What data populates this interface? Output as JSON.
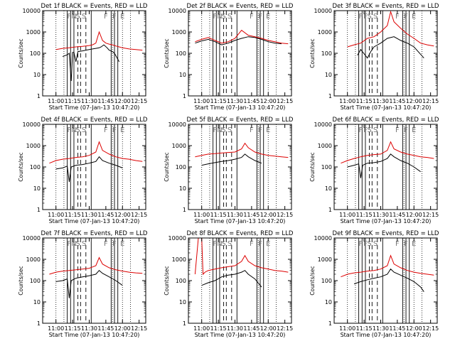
{
  "chart_data": [
    {
      "type": "line",
      "panel": 1,
      "title": "Det 1f BLACK = Events, RED = LLD",
      "xlabel": "Start Time (07-Jan-13 10:47:20)",
      "ylabel": "Counts/sec",
      "yscale": "log",
      "ylim": [
        1,
        10000
      ],
      "xlim_minutes": [
        10.8,
        12.35
      ],
      "xticks": [
        "11:00",
        "11:15",
        "11:30",
        "11:45",
        "12:00",
        "12:15"
      ],
      "yticks": [
        "1",
        "10",
        "100",
        "1000",
        "10000"
      ],
      "markers": [
        "F",
        "N",
        "S",
        "S",
        "F",
        "F",
        "E"
      ],
      "series": [
        {
          "color": "#000000",
          "x": [
            11.1,
            11.17,
            11.2,
            11.23,
            11.25,
            11.27,
            11.3,
            11.33,
            11.4,
            11.45,
            11.5,
            11.55,
            11.6,
            11.65,
            11.68,
            11.72,
            11.77,
            11.8,
            11.85,
            11.88,
            11.92,
            11.95
          ],
          "y": [
            70,
            85,
            100,
            5,
            110,
            110,
            40,
            120,
            130,
            140,
            150,
            160,
            170,
            180,
            200,
            250,
            180,
            140,
            120,
            100,
            60,
            40
          ]
        },
        {
          "color": "#dd0000",
          "x": [
            11.0,
            11.1,
            11.2,
            11.3,
            11.4,
            11.5,
            11.55,
            11.6,
            11.65,
            11.7,
            11.75,
            11.8,
            11.85,
            11.9,
            11.95,
            12.0,
            12.1,
            12.2,
            12.3
          ],
          "y": [
            150,
            170,
            180,
            200,
            210,
            230,
            250,
            300,
            1000,
            400,
            300,
            270,
            250,
            220,
            200,
            180,
            160,
            150,
            140
          ]
        }
      ]
    },
    {
      "type": "line",
      "panel": 2,
      "title": "Det 2f BLACK = Events, RED = LLD",
      "xlabel": "Start Time (07-Jan-13 10:47:20)",
      "ylabel": "Counts/sec",
      "yscale": "log",
      "ylim": [
        1,
        10000
      ],
      "xlim_minutes": [
        10.8,
        12.35
      ],
      "xticks": [
        "11:00",
        "11:15",
        "11:30",
        "11:45",
        "12:00",
        "12:15"
      ],
      "yticks": [
        "1",
        "10",
        "100",
        "1000",
        "10000"
      ],
      "markers": [
        "F",
        "N",
        "S",
        "S",
        "F",
        "F",
        "E"
      ],
      "series": [
        {
          "color": "#000000",
          "x": [
            10.9,
            11.0,
            11.1,
            11.2,
            11.3,
            11.4,
            11.5,
            11.6,
            11.7,
            11.8,
            11.9,
            12.0,
            12.1,
            12.2
          ],
          "y": [
            300,
            380,
            450,
            350,
            250,
            300,
            400,
            500,
            600,
            550,
            450,
            350,
            300,
            280
          ]
        },
        {
          "color": "#dd0000",
          "x": [
            10.9,
            11.0,
            11.1,
            11.2,
            11.3,
            11.4,
            11.5,
            11.6,
            11.7,
            11.8,
            11.9,
            12.0,
            12.1,
            12.2,
            12.3
          ],
          "y": [
            350,
            450,
            550,
            400,
            300,
            350,
            500,
            1200,
            700,
            600,
            500,
            400,
            350,
            300,
            280
          ]
        }
      ]
    },
    {
      "type": "line",
      "panel": 3,
      "title": "Det 3f BLACK = Events, RED = LLD",
      "xlabel": "Start Time (07-Jan-13 10:47:20)",
      "ylabel": "Counts/sec",
      "yscale": "log",
      "ylim": [
        1,
        10000
      ],
      "xlim_minutes": [
        10.8,
        12.35
      ],
      "xticks": [
        "11:00",
        "11:15",
        "11:30",
        "11:45",
        "12:00",
        "12:15"
      ],
      "yticks": [
        "1",
        "10",
        "100",
        "1000",
        "10000"
      ],
      "markers": [
        "F",
        "F",
        "S",
        "S",
        "F",
        "F",
        "E"
      ],
      "series": [
        {
          "color": "#000000",
          "x": [
            11.15,
            11.2,
            11.3,
            11.35,
            11.4,
            11.5,
            11.6,
            11.7,
            11.8,
            11.9,
            12.0,
            12.1,
            12.15
          ],
          "y": [
            80,
            150,
            60,
            120,
            200,
            300,
            500,
            600,
            400,
            300,
            200,
            90,
            60
          ]
        },
        {
          "color": "#dd0000",
          "x": [
            11.0,
            11.1,
            11.2,
            11.3,
            11.4,
            11.5,
            11.6,
            11.65,
            11.7,
            11.8,
            11.9,
            12.0,
            12.1,
            12.2,
            12.3
          ],
          "y": [
            200,
            250,
            300,
            500,
            600,
            1000,
            2000,
            9000,
            3000,
            1500,
            800,
            500,
            300,
            250,
            220
          ]
        }
      ]
    },
    {
      "type": "line",
      "panel": 4,
      "title": "Det 4f BLACK = Events, RED = LLD",
      "xlabel": "Start Time (07-Jan-13 10:47:20)",
      "ylabel": "Counts/sec",
      "yscale": "log",
      "ylim": [
        1,
        10000
      ],
      "xlim_minutes": [
        10.8,
        12.35
      ],
      "xticks": [
        "11:00",
        "11:15",
        "11:30",
        "11:45",
        "12:00",
        "12:15"
      ],
      "yticks": [
        "1",
        "10",
        "100",
        "1000",
        "10000"
      ],
      "markers": [
        "F",
        "N",
        "S",
        "S",
        "F",
        "F",
        "E"
      ],
      "series": [
        {
          "color": "#000000",
          "x": [
            11.0,
            11.1,
            11.17,
            11.2,
            11.23,
            11.3,
            11.4,
            11.5,
            11.6,
            11.65,
            11.7,
            11.8,
            11.9,
            12.0
          ],
          "y": [
            80,
            90,
            110,
            20,
            100,
            120,
            130,
            150,
            180,
            300,
            200,
            150,
            120,
            90
          ]
        },
        {
          "color": "#dd0000",
          "x": [
            10.9,
            11.0,
            11.1,
            11.2,
            11.3,
            11.4,
            11.5,
            11.6,
            11.65,
            11.7,
            11.8,
            11.9,
            12.0,
            12.1,
            12.2,
            12.3
          ],
          "y": [
            150,
            200,
            230,
            250,
            280,
            300,
            350,
            500,
            1500,
            600,
            400,
            300,
            250,
            230,
            200,
            180
          ]
        }
      ]
    },
    {
      "type": "line",
      "panel": 5,
      "title": "Det 5f BLACK = Events, RED = LLD",
      "xlabel": "Start Time (07-Jan-13 10:47:20)",
      "ylabel": "Counts/sec",
      "yscale": "log",
      "ylim": [
        1,
        10000
      ],
      "xlim_minutes": [
        10.8,
        12.35
      ],
      "xticks": [
        "11:00",
        "11:15",
        "11:30",
        "11:45",
        "12:00",
        "12:15"
      ],
      "yticks": [
        "1",
        "10",
        "100",
        "1000",
        "10000"
      ],
      "markers": [
        "F",
        "N",
        "S",
        "S",
        "F",
        "F",
        "E"
      ],
      "series": [
        {
          "color": "#000000",
          "x": [
            11.0,
            11.1,
            11.2,
            11.3,
            11.4,
            11.5,
            11.6,
            11.65,
            11.7,
            11.8,
            11.9
          ],
          "y": [
            120,
            140,
            160,
            180,
            200,
            230,
            280,
            400,
            300,
            200,
            150
          ]
        },
        {
          "color": "#dd0000",
          "x": [
            10.9,
            11.0,
            11.1,
            11.2,
            11.3,
            11.4,
            11.5,
            11.6,
            11.65,
            11.7,
            11.8,
            11.9,
            12.0,
            12.1,
            12.2,
            12.3
          ],
          "y": [
            300,
            350,
            400,
            420,
            450,
            480,
            500,
            700,
            1300,
            800,
            500,
            400,
            350,
            320,
            300,
            280
          ]
        }
      ]
    },
    {
      "type": "line",
      "panel": 6,
      "title": "Det 6f BLACK = Events, RED = LLD",
      "xlabel": "Start Time (07-Jan-13 10:47:20)",
      "ylabel": "Counts/sec",
      "yscale": "log",
      "ylim": [
        1,
        10000
      ],
      "xlim_minutes": [
        10.8,
        12.35
      ],
      "xticks": [
        "11:00",
        "11:15",
        "11:30",
        "11:45",
        "12:00",
        "12:15"
      ],
      "yticks": [
        "1",
        "10",
        "100",
        "1000",
        "10000"
      ],
      "markers": [
        "F",
        "F",
        "S",
        "S",
        "F",
        "F",
        "E"
      ],
      "series": [
        {
          "color": "#000000",
          "x": [
            11.0,
            11.1,
            11.17,
            11.2,
            11.23,
            11.3,
            11.4,
            11.5,
            11.6,
            11.65,
            11.7,
            11.8,
            11.9,
            12.0,
            12.1
          ],
          "y": [
            100,
            120,
            140,
            30,
            120,
            150,
            160,
            180,
            250,
            400,
            300,
            200,
            150,
            100,
            60
          ]
        },
        {
          "color": "#dd0000",
          "x": [
            10.9,
            11.0,
            11.1,
            11.2,
            11.3,
            11.4,
            11.5,
            11.6,
            11.65,
            11.7,
            11.8,
            11.9,
            12.0,
            12.1,
            12.2,
            12.3
          ],
          "y": [
            150,
            200,
            250,
            300,
            350,
            380,
            400,
            600,
            1500,
            700,
            500,
            400,
            350,
            300,
            280,
            250
          ]
        }
      ]
    },
    {
      "type": "line",
      "panel": 7,
      "title": "Det 7f BLACK = Events, RED = LLD",
      "xlabel": "Start Time (07-Jan-13 10:47:20)",
      "ylabel": "Counts/sec",
      "yscale": "log",
      "ylim": [
        1,
        10000
      ],
      "xlim_minutes": [
        10.8,
        12.35
      ],
      "xticks": [
        "11:00",
        "11:15",
        "11:30",
        "11:45",
        "12:00",
        "12:15"
      ],
      "yticks": [
        "1",
        "10",
        "100",
        "1000",
        "10000"
      ],
      "markers": [
        "F",
        "N",
        "S",
        "S",
        "F",
        "F",
        "E"
      ],
      "series": [
        {
          "color": "#000000",
          "x": [
            11.0,
            11.1,
            11.17,
            11.2,
            11.23,
            11.3,
            11.4,
            11.5,
            11.6,
            11.65,
            11.7,
            11.8,
            11.9,
            12.0
          ],
          "y": [
            90,
            100,
            120,
            15,
            100,
            130,
            150,
            170,
            200,
            300,
            220,
            150,
            100,
            60
          ]
        },
        {
          "color": "#dd0000",
          "x": [
            10.9,
            11.0,
            11.1,
            11.2,
            11.3,
            11.4,
            11.5,
            11.6,
            11.65,
            11.7,
            11.8,
            11.9,
            12.0,
            12.1,
            12.2,
            12.3
          ],
          "y": [
            200,
            250,
            280,
            300,
            320,
            350,
            380,
            500,
            1200,
            600,
            400,
            320,
            280,
            250,
            230,
            220
          ]
        }
      ]
    },
    {
      "type": "line",
      "panel": 8,
      "title": "Det 8f BLACK = Events, RED = LLD",
      "xlabel": "Start Time (07-Jan-13 10:47:20)",
      "ylabel": "Counts/sec",
      "yscale": "log",
      "ylim": [
        1,
        10000
      ],
      "xlim_minutes": [
        10.8,
        12.35
      ],
      "xticks": [
        "11:00",
        "11:15",
        "11:30",
        "11:45",
        "12:00",
        "12:15"
      ],
      "yticks": [
        "1",
        "10",
        "100",
        "1000",
        "10000"
      ],
      "markers": [
        "F",
        "N",
        "S",
        "S",
        "F",
        "F",
        "E"
      ],
      "series": [
        {
          "color": "#000000",
          "x": [
            11.0,
            11.1,
            11.2,
            11.3,
            11.4,
            11.5,
            11.6,
            11.65,
            11.7,
            11.8,
            11.9
          ],
          "y": [
            60,
            80,
            100,
            150,
            180,
            200,
            250,
            300,
            200,
            120,
            50
          ]
        },
        {
          "color": "#dd0000",
          "x": [
            10.9,
            10.95,
            11.0,
            11.02,
            11.05,
            11.1,
            11.2,
            11.3,
            11.4,
            11.5,
            11.6,
            11.65,
            11.7,
            11.8,
            11.9,
            12.0,
            12.1,
            12.2,
            12.3
          ],
          "y": [
            200,
            10000,
            10000,
            200,
            250,
            300,
            350,
            400,
            450,
            500,
            800,
            1500,
            800,
            500,
            400,
            350,
            300,
            280,
            250
          ]
        }
      ]
    },
    {
      "type": "line",
      "panel": 9,
      "title": "Det 9f BLACK = Events, RED = LLD",
      "xlabel": "Start Time (07-Jan-13 10:47:20)",
      "ylabel": "Counts/sec",
      "yscale": "log",
      "ylim": [
        1,
        10000
      ],
      "xlim_minutes": [
        10.8,
        12.35
      ],
      "xticks": [
        "11:00",
        "11:15",
        "11:30",
        "11:45",
        "12:00",
        "12:15"
      ],
      "yticks": [
        "1",
        "10",
        "100",
        "1000",
        "10000"
      ],
      "markers": [
        "F",
        "F",
        "S",
        "S",
        "F",
        "F",
        "E"
      ],
      "series": [
        {
          "color": "#000000",
          "x": [
            11.1,
            11.2,
            11.3,
            11.4,
            11.5,
            11.6,
            11.65,
            11.7,
            11.8,
            11.9,
            12.0,
            12.1,
            12.15
          ],
          "y": [
            70,
            90,
            110,
            130,
            150,
            200,
            350,
            250,
            180,
            130,
            90,
            50,
            30
          ]
        },
        {
          "color": "#dd0000",
          "x": [
            10.9,
            11.0,
            11.1,
            11.2,
            11.3,
            11.4,
            11.5,
            11.6,
            11.65,
            11.7,
            11.8,
            11.9,
            12.0,
            12.1,
            12.2,
            12.3
          ],
          "y": [
            150,
            200,
            230,
            250,
            280,
            300,
            350,
            500,
            1500,
            600,
            400,
            300,
            250,
            220,
            200,
            180
          ]
        }
      ]
    }
  ],
  "figure": {
    "background": "#ffffff",
    "axis_color": "#000000",
    "black_series_color": "#000000",
    "red_series_color": "#dd0000"
  }
}
